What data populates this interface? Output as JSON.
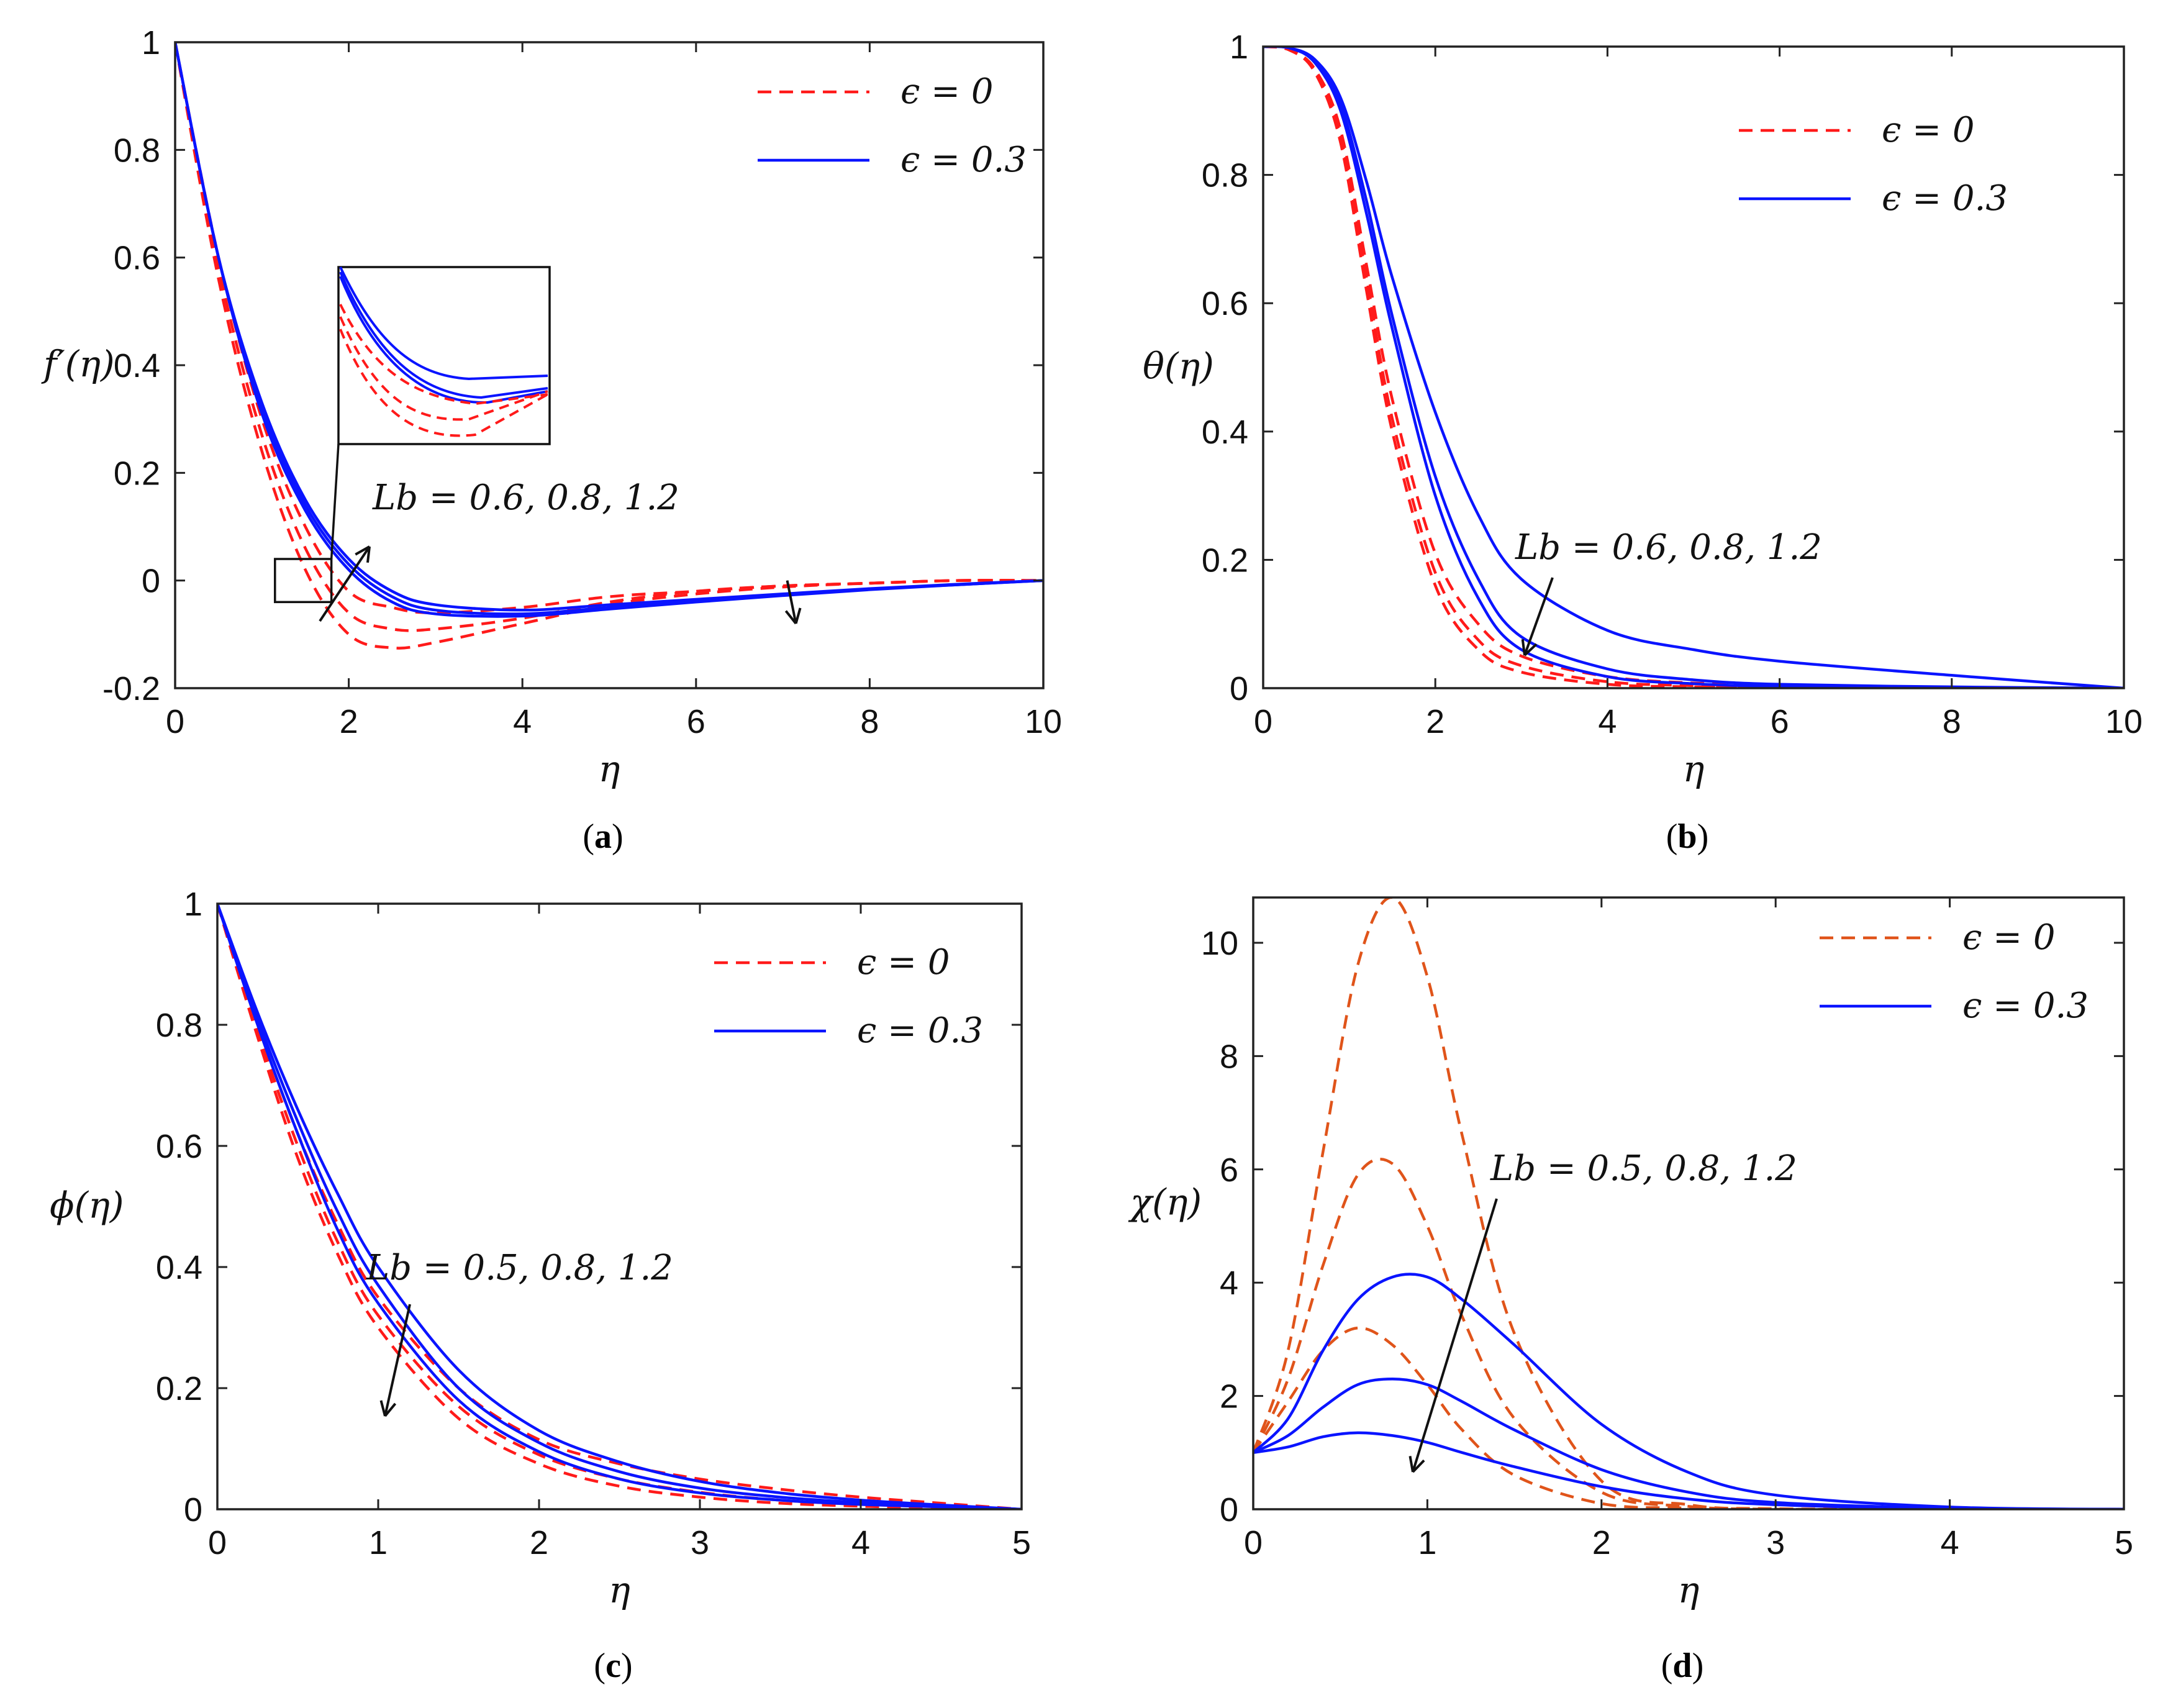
{
  "chart_data": [
    {
      "panel": "a",
      "type": "line",
      "caption_letter": "a",
      "xlabel": "η",
      "ylabel": "f′(η)",
      "xlim": [
        0,
        10
      ],
      "ylim": [
        -0.2,
        1
      ],
      "xticks": [
        "0",
        "2",
        "4",
        "6",
        "8",
        "10"
      ],
      "xtick_values": [
        0,
        2,
        4,
        6,
        8,
        10
      ],
      "yticks": [
        "-0.2",
        "0",
        "0.2",
        "0.4",
        "0.6",
        "0.8",
        "1"
      ],
      "ytick_values": [
        -0.2,
        0,
        0.2,
        0.4,
        0.6,
        0.8,
        1
      ],
      "legend": [
        {
          "label": "ϵ = 0",
          "style": "dashed",
          "color": "#ff1a1a"
        },
        {
          "label": "ϵ = 0.3",
          "style": "solid",
          "color": "#0a14ff"
        }
      ],
      "annotation": "Lb = 0.6, 0.8, 1.2",
      "series": [
        {
          "name": "ϵ = 0, Lb = 0.6",
          "style": "dashed",
          "color": "#ff1a1a",
          "x": [
            0,
            0.5,
            1,
            1.5,
            2,
            2.5,
            3,
            4,
            5,
            6,
            7,
            8,
            9,
            10
          ],
          "y": [
            1,
            0.6,
            0.3,
            0.1,
            -0.02,
            -0.05,
            -0.06,
            -0.05,
            -0.03,
            -0.02,
            -0.01,
            -0.005,
            0,
            0
          ]
        },
        {
          "name": "ϵ = 0, Lb = 0.8",
          "style": "dashed",
          "color": "#ff1a1a",
          "x": [
            0,
            0.5,
            1,
            1.5,
            2,
            2.5,
            3,
            4,
            5,
            6,
            7,
            8,
            9,
            10
          ],
          "y": [
            1,
            0.58,
            0.27,
            0.06,
            -0.06,
            -0.09,
            -0.09,
            -0.07,
            -0.04,
            -0.02,
            -0.01,
            -0.005,
            0,
            0
          ]
        },
        {
          "name": "ϵ = 0, Lb = 1.2",
          "style": "dashed",
          "color": "#ff1a1a",
          "x": [
            0,
            0.5,
            1,
            1.5,
            2,
            2.5,
            3,
            4,
            5,
            6,
            7,
            8,
            9,
            10
          ],
          "y": [
            1,
            0.56,
            0.24,
            0.02,
            -0.1,
            -0.125,
            -0.115,
            -0.08,
            -0.045,
            -0.025,
            -0.012,
            -0.005,
            0,
            0
          ]
        },
        {
          "name": "ϵ = 0.3, Lb = 0.6",
          "style": "solid",
          "color": "#0a14ff",
          "x": [
            0,
            0.5,
            1,
            1.5,
            2,
            2.5,
            3,
            4,
            5,
            6,
            7,
            8,
            9,
            10
          ],
          "y": [
            1,
            0.6,
            0.33,
            0.15,
            0.04,
            -0.02,
            -0.045,
            -0.055,
            -0.045,
            -0.035,
            -0.025,
            -0.015,
            -0.007,
            0
          ]
        },
        {
          "name": "ϵ = 0.3, Lb = 0.8",
          "style": "solid",
          "color": "#0a14ff",
          "x": [
            0,
            0.5,
            1,
            1.5,
            2,
            2.5,
            3,
            4,
            5,
            6,
            7,
            8,
            9,
            10
          ],
          "y": [
            1,
            0.6,
            0.32,
            0.14,
            0.03,
            -0.03,
            -0.055,
            -0.062,
            -0.05,
            -0.038,
            -0.027,
            -0.016,
            -0.008,
            0
          ]
        },
        {
          "name": "ϵ = 0.3, Lb = 1.2",
          "style": "solid",
          "color": "#0a14ff",
          "x": [
            0,
            0.5,
            1,
            1.5,
            2,
            2.5,
            3,
            4,
            5,
            6,
            7,
            8,
            9,
            10
          ],
          "y": [
            1,
            0.6,
            0.31,
            0.13,
            0.02,
            -0.04,
            -0.062,
            -0.066,
            -0.053,
            -0.04,
            -0.028,
            -0.017,
            -0.008,
            0
          ]
        }
      ]
    },
    {
      "panel": "b",
      "type": "line",
      "caption_letter": "b",
      "xlabel": "η",
      "ylabel": "θ(η)",
      "xlim": [
        0,
        10
      ],
      "ylim": [
        0,
        1
      ],
      "xticks": [
        "0",
        "2",
        "4",
        "6",
        "8",
        "10"
      ],
      "xtick_values": [
        0,
        2,
        4,
        6,
        8,
        10
      ],
      "yticks": [
        "0",
        "0.2",
        "0.4",
        "0.6",
        "0.8",
        "1"
      ],
      "ytick_values": [
        0,
        0.2,
        0.4,
        0.6,
        0.8,
        1
      ],
      "legend": [
        {
          "label": "ϵ = 0",
          "style": "dashed",
          "color": "#ff1a1a"
        },
        {
          "label": "ϵ = 0.3",
          "style": "solid",
          "color": "#0a14ff"
        }
      ],
      "annotation": "Lb = 0.6, 0.8, 1.2",
      "series": [
        {
          "name": "ϵ = 0, Lb = 0.6",
          "style": "dashed",
          "color": "#ff1a1a",
          "x": [
            0,
            0.3,
            0.6,
            0.9,
            1.2,
            1.5,
            2,
            2.5,
            3,
            4,
            5,
            6,
            8,
            10
          ],
          "y": [
            1,
            0.995,
            0.96,
            0.85,
            0.62,
            0.4,
            0.16,
            0.06,
            0.025,
            0.006,
            0.002,
            0,
            0,
            0
          ]
        },
        {
          "name": "ϵ = 0, Lb = 0.8",
          "style": "dashed",
          "color": "#ff1a1a",
          "x": [
            0,
            0.3,
            0.6,
            0.9,
            1.2,
            1.5,
            2,
            2.5,
            3,
            4,
            5,
            6,
            8,
            10
          ],
          "y": [
            1,
            0.995,
            0.962,
            0.86,
            0.64,
            0.42,
            0.18,
            0.075,
            0.035,
            0.01,
            0.004,
            0.001,
            0,
            0
          ]
        },
        {
          "name": "ϵ = 0, Lb = 1.2",
          "style": "dashed",
          "color": "#ff1a1a",
          "x": [
            0,
            0.3,
            0.6,
            0.9,
            1.2,
            1.5,
            2,
            2.5,
            3,
            4,
            5,
            6,
            8,
            10
          ],
          "y": [
            1,
            0.995,
            0.965,
            0.87,
            0.66,
            0.45,
            0.21,
            0.1,
            0.05,
            0.018,
            0.008,
            0.004,
            0.001,
            0
          ]
        },
        {
          "name": "ϵ = 0.3, Lb = 0.6",
          "style": "solid",
          "color": "#0a14ff",
          "x": [
            0,
            0.3,
            0.6,
            0.9,
            1.2,
            1.5,
            2,
            2.5,
            3,
            4,
            5,
            6,
            8,
            10
          ],
          "y": [
            1,
            0.998,
            0.975,
            0.9,
            0.74,
            0.56,
            0.3,
            0.14,
            0.06,
            0.018,
            0.007,
            0.003,
            0.001,
            0
          ]
        },
        {
          "name": "ϵ = 0.3, Lb = 0.8",
          "style": "solid",
          "color": "#0a14ff",
          "x": [
            0,
            0.3,
            0.6,
            0.9,
            1.2,
            1.5,
            2,
            2.5,
            3,
            4,
            5,
            6,
            8,
            10
          ],
          "y": [
            1,
            0.998,
            0.978,
            0.91,
            0.76,
            0.58,
            0.33,
            0.17,
            0.08,
            0.03,
            0.013,
            0.006,
            0.002,
            0
          ]
        },
        {
          "name": "ϵ = 0.3, Lb = 1.2",
          "style": "solid",
          "color": "#0a14ff",
          "x": [
            0,
            0.3,
            0.6,
            0.9,
            1.2,
            1.5,
            2,
            2.5,
            3,
            4,
            5,
            6,
            8,
            10
          ],
          "y": [
            1,
            0.998,
            0.98,
            0.92,
            0.79,
            0.64,
            0.43,
            0.27,
            0.17,
            0.09,
            0.06,
            0.042,
            0.02,
            0
          ]
        }
      ]
    },
    {
      "panel": "c",
      "type": "line",
      "caption_letter": "c",
      "xlabel": "η",
      "ylabel": "ϕ(η)",
      "xlim": [
        0,
        5
      ],
      "ylim": [
        0,
        1
      ],
      "xticks": [
        "0",
        "1",
        "2",
        "3",
        "4",
        "5"
      ],
      "xtick_values": [
        0,
        1,
        2,
        3,
        4,
        5
      ],
      "yticks": [
        "0",
        "0.2",
        "0.4",
        "0.6",
        "0.8",
        "1"
      ],
      "ytick_values": [
        0,
        0.2,
        0.4,
        0.6,
        0.8,
        1
      ],
      "legend": [
        {
          "label": "ϵ = 0",
          "style": "dashed",
          "color": "#ff1a1a"
        },
        {
          "label": "ϵ = 0.3",
          "style": "solid",
          "color": "#0a14ff"
        }
      ],
      "annotation": "Lb = 0.5, 0.8, 1.2",
      "series": [
        {
          "name": "ϵ = 0, Lb = 0.5",
          "style": "dashed",
          "color": "#ff1a1a",
          "x": [
            0,
            0.25,
            0.5,
            0.75,
            1,
            1.5,
            2,
            2.5,
            3,
            3.5,
            4,
            4.5,
            5
          ],
          "y": [
            1,
            0.78,
            0.58,
            0.42,
            0.3,
            0.15,
            0.075,
            0.038,
            0.02,
            0.01,
            0.005,
            0.002,
            0
          ]
        },
        {
          "name": "ϵ = 0, Lb = 0.8",
          "style": "dashed",
          "color": "#ff1a1a",
          "x": [
            0,
            0.25,
            0.5,
            0.75,
            1,
            1.5,
            2,
            2.5,
            3,
            3.5,
            4,
            4.5,
            5
          ],
          "y": [
            1,
            0.79,
            0.6,
            0.44,
            0.32,
            0.17,
            0.09,
            0.05,
            0.028,
            0.015,
            0.008,
            0.004,
            0
          ]
        },
        {
          "name": "ϵ = 0, Lb = 1.2",
          "style": "dashed",
          "color": "#ff1a1a",
          "x": [
            0,
            0.25,
            0.5,
            0.75,
            1,
            1.5,
            2,
            2.5,
            3,
            3.5,
            4,
            4.5,
            5
          ],
          "y": [
            1,
            0.8,
            0.62,
            0.47,
            0.35,
            0.2,
            0.115,
            0.075,
            0.05,
            0.033,
            0.02,
            0.01,
            0
          ]
        },
        {
          "name": "ϵ = 0.3, Lb = 0.5",
          "style": "solid",
          "color": "#0a14ff",
          "x": [
            0,
            0.25,
            0.5,
            0.75,
            1,
            1.5,
            2,
            2.5,
            3,
            3.5,
            4,
            4.5,
            5
          ],
          "y": [
            1,
            0.8,
            0.62,
            0.46,
            0.34,
            0.18,
            0.095,
            0.05,
            0.027,
            0.015,
            0.008,
            0.004,
            0
          ]
        },
        {
          "name": "ϵ = 0.3, Lb = 0.8",
          "style": "solid",
          "color": "#0a14ff",
          "x": [
            0,
            0.25,
            0.5,
            0.75,
            1,
            1.5,
            2,
            2.5,
            3,
            3.5,
            4,
            4.5,
            5
          ],
          "y": [
            1,
            0.81,
            0.64,
            0.49,
            0.37,
            0.2,
            0.11,
            0.062,
            0.035,
            0.02,
            0.011,
            0.005,
            0
          ]
        },
        {
          "name": "ϵ = 0.3, Lb = 1.2",
          "style": "solid",
          "color": "#0a14ff",
          "x": [
            0,
            0.25,
            0.5,
            0.75,
            1,
            1.5,
            2,
            2.5,
            3,
            3.5,
            4,
            4.5,
            5
          ],
          "y": [
            1,
            0.82,
            0.66,
            0.52,
            0.4,
            0.23,
            0.13,
            0.078,
            0.046,
            0.027,
            0.015,
            0.007,
            0
          ]
        }
      ]
    },
    {
      "panel": "d",
      "type": "line",
      "caption_letter": "d",
      "xlabel": "η",
      "ylabel": "χ(η)",
      "xlim": [
        0,
        5
      ],
      "ylim": [
        0,
        10.8
      ],
      "xticks": [
        "0",
        "1",
        "2",
        "3",
        "4",
        "5"
      ],
      "xtick_values": [
        0,
        1,
        2,
        3,
        4,
        5
      ],
      "yticks": [
        "0",
        "2",
        "4",
        "6",
        "8",
        "10"
      ],
      "ytick_values": [
        0,
        2,
        4,
        6,
        8,
        10
      ],
      "legend": [
        {
          "label": "ϵ = 0",
          "style": "dashed",
          "color": "#e0541a"
        },
        {
          "label": "ϵ = 0.3",
          "style": "solid",
          "color": "#0a14ff"
        }
      ],
      "annotation": "Lb = 0.5, 0.8, 1.2",
      "series": [
        {
          "name": "ϵ = 0, Lb = 0.5",
          "style": "dashed",
          "color": "#e0541a",
          "x": [
            0,
            0.2,
            0.4,
            0.6,
            0.8,
            1,
            1.2,
            1.5,
            2,
            2.5,
            3,
            4,
            5
          ],
          "y": [
            1,
            1.9,
            2.8,
            3.2,
            2.9,
            2.2,
            1.4,
            0.6,
            0.1,
            0.02,
            0,
            0,
            0
          ]
        },
        {
          "name": "ϵ = 0, Lb = 0.8",
          "style": "dashed",
          "color": "#e0541a",
          "x": [
            0,
            0.2,
            0.4,
            0.6,
            0.8,
            1,
            1.2,
            1.5,
            2,
            2.5,
            3,
            4,
            5
          ],
          "y": [
            1,
            2.3,
            4.3,
            5.9,
            6.1,
            5.0,
            3.4,
            1.6,
            0.3,
            0.05,
            0,
            0,
            0
          ]
        },
        {
          "name": "ϵ = 0, Lb = 1.2",
          "style": "dashed",
          "color": "#e0541a",
          "x": [
            0,
            0.2,
            0.4,
            0.6,
            0.8,
            1,
            1.2,
            1.5,
            2,
            2.5,
            3,
            4,
            5
          ],
          "y": [
            1,
            2.8,
            6.3,
            9.6,
            10.8,
            9.4,
            6.6,
            3.1,
            0.5,
            0.08,
            0.01,
            0,
            0
          ]
        },
        {
          "name": "ϵ = 0.3, Lb = 0.5",
          "style": "solid",
          "color": "#0a14ff",
          "x": [
            0,
            0.2,
            0.4,
            0.6,
            0.8,
            1,
            1.2,
            1.5,
            2,
            2.5,
            3,
            4,
            5
          ],
          "y": [
            1,
            1.1,
            1.28,
            1.35,
            1.3,
            1.18,
            1.0,
            0.75,
            0.4,
            0.18,
            0.08,
            0.01,
            0
          ]
        },
        {
          "name": "ϵ = 0.3, Lb = 0.8",
          "style": "solid",
          "color": "#0a14ff",
          "x": [
            0,
            0.2,
            0.4,
            0.6,
            0.8,
            1,
            1.2,
            1.5,
            2,
            2.5,
            3,
            4,
            5
          ],
          "y": [
            1,
            1.3,
            1.8,
            2.2,
            2.3,
            2.2,
            1.9,
            1.4,
            0.7,
            0.3,
            0.12,
            0.02,
            0
          ]
        },
        {
          "name": "ϵ = 0.3, Lb = 1.2",
          "style": "solid",
          "color": "#0a14ff",
          "x": [
            0,
            0.2,
            0.4,
            0.6,
            0.8,
            1,
            1.2,
            1.5,
            2,
            2.5,
            3,
            4,
            5
          ],
          "y": [
            1,
            1.6,
            2.8,
            3.7,
            4.1,
            4.1,
            3.7,
            2.9,
            1.5,
            0.65,
            0.25,
            0.04,
            0
          ]
        }
      ]
    }
  ]
}
